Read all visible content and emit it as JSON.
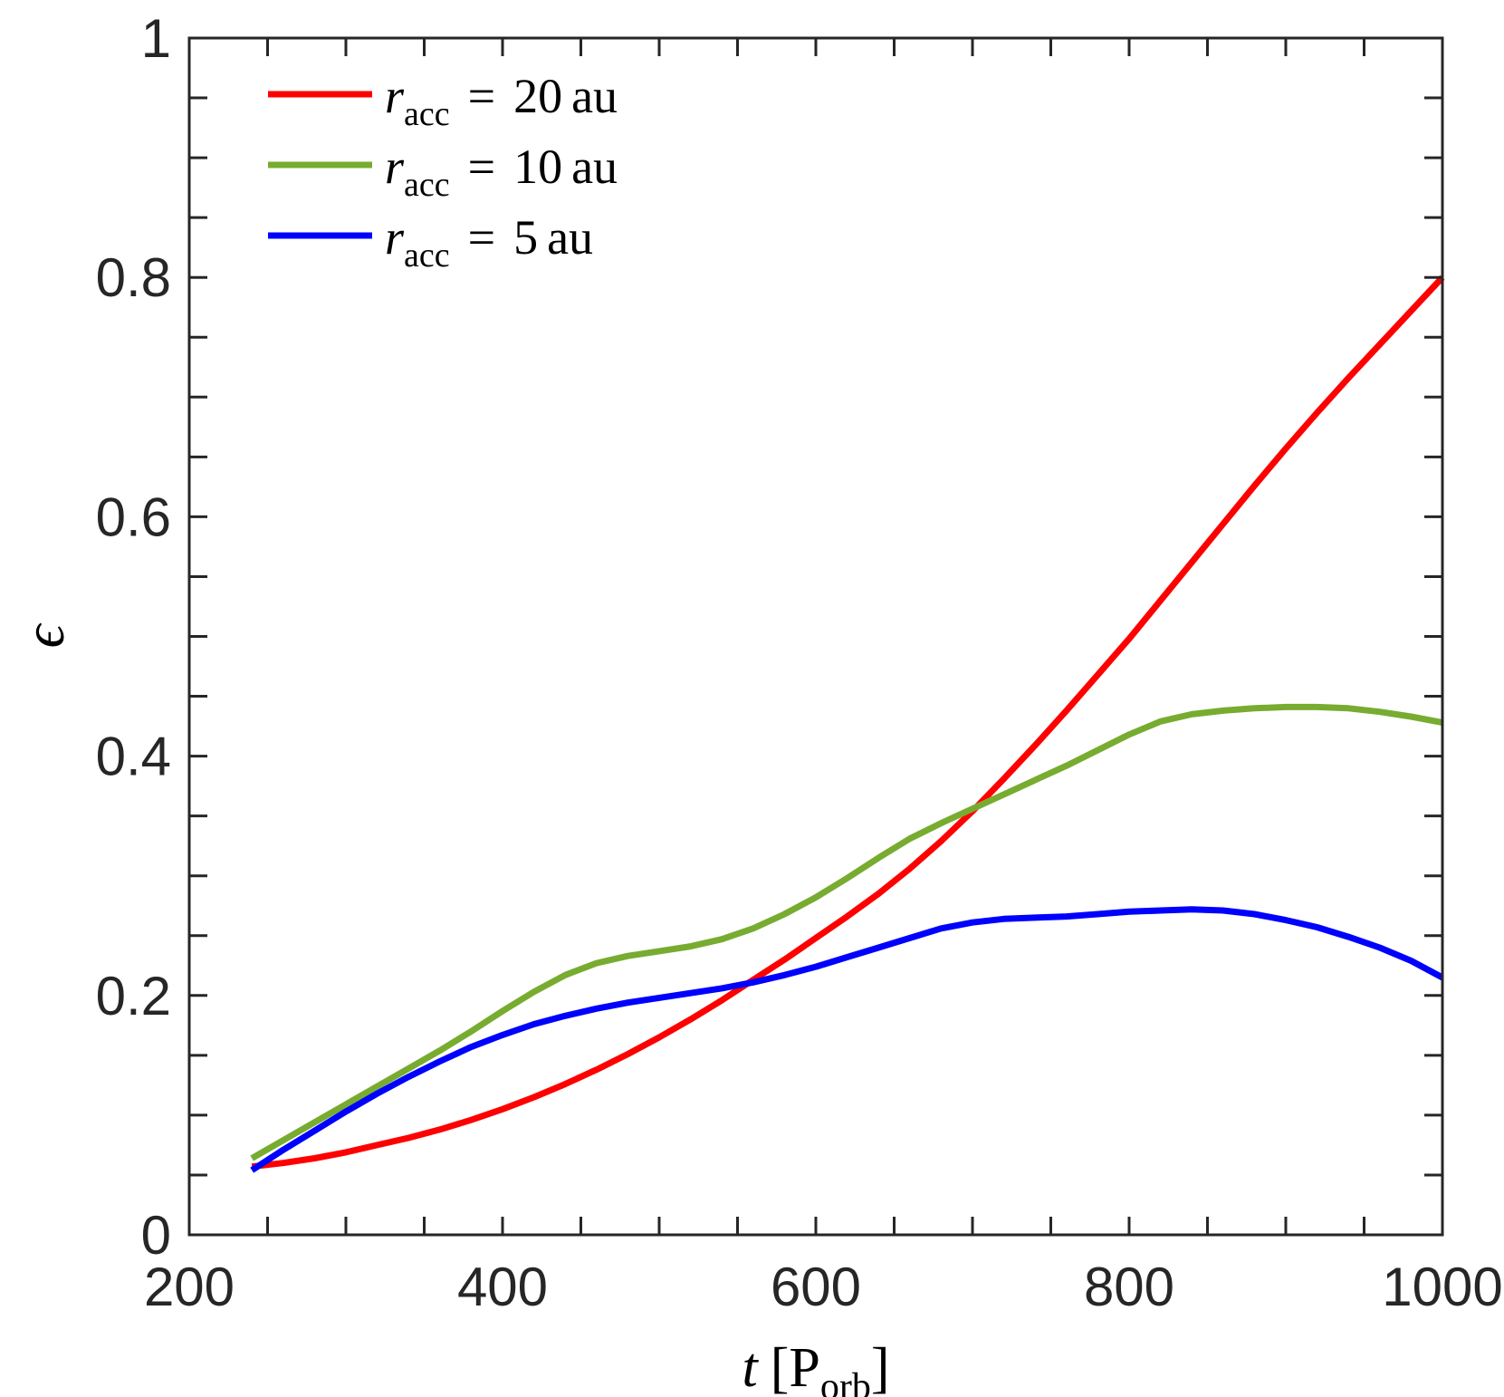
{
  "chart_data": {
    "type": "line",
    "title": "",
    "xlabel": {
      "var": "t",
      "unit_main": "P",
      "unit_sub": "orb"
    },
    "ylabel": "ϵ",
    "xlim": [
      200,
      1000
    ],
    "ylim": [
      0,
      1
    ],
    "x_ticks": [
      200,
      400,
      600,
      800,
      1000
    ],
    "x_tick_labels": [
      "200",
      "400",
      "600",
      "800",
      "1000"
    ],
    "x_minor_step": 50,
    "y_ticks": [
      0,
      0.2,
      0.4,
      0.6,
      0.8,
      1
    ],
    "y_tick_labels": [
      "0",
      "0.2",
      "0.4",
      "0.6",
      "0.8",
      "1"
    ],
    "y_minor_step": 0.05,
    "grid": false,
    "legend_position": "top-left",
    "series": [
      {
        "name": "r_acc = 20 au",
        "legend": {
          "var": "r",
          "sub": "acc",
          "eq": "=",
          "value": "20",
          "unit": "au"
        },
        "color": "#ff0000",
        "x": [
          240,
          260,
          280,
          300,
          320,
          340,
          360,
          380,
          400,
          420,
          440,
          460,
          480,
          500,
          520,
          540,
          560,
          580,
          600,
          620,
          640,
          660,
          680,
          700,
          720,
          740,
          760,
          780,
          800,
          820,
          840,
          860,
          880,
          900,
          920,
          940,
          960,
          980,
          1000
        ],
        "y": [
          0.057,
          0.06,
          0.064,
          0.069,
          0.075,
          0.081,
          0.088,
          0.096,
          0.105,
          0.115,
          0.126,
          0.138,
          0.151,
          0.165,
          0.18,
          0.196,
          0.213,
          0.23,
          0.248,
          0.266,
          0.285,
          0.306,
          0.329,
          0.354,
          0.381,
          0.409,
          0.438,
          0.468,
          0.498,
          0.53,
          0.562,
          0.594,
          0.626,
          0.657,
          0.687,
          0.716,
          0.744,
          0.772,
          0.8
        ]
      },
      {
        "name": "r_acc = 10 au",
        "legend": {
          "var": "r",
          "sub": "acc",
          "eq": "=",
          "value": "10",
          "unit": "au"
        },
        "color": "#77ac30",
        "x": [
          240,
          260,
          280,
          300,
          320,
          340,
          360,
          380,
          400,
          420,
          440,
          460,
          480,
          500,
          520,
          540,
          560,
          580,
          600,
          620,
          640,
          660,
          680,
          700,
          720,
          740,
          760,
          780,
          800,
          820,
          840,
          860,
          880,
          900,
          920,
          940,
          960,
          980,
          1000
        ],
        "y": [
          0.064,
          0.079,
          0.094,
          0.109,
          0.124,
          0.139,
          0.154,
          0.17,
          0.187,
          0.203,
          0.217,
          0.227,
          0.233,
          0.237,
          0.241,
          0.247,
          0.256,
          0.268,
          0.282,
          0.298,
          0.315,
          0.331,
          0.344,
          0.356,
          0.368,
          0.38,
          0.392,
          0.405,
          0.418,
          0.429,
          0.435,
          0.438,
          0.44,
          0.441,
          0.441,
          0.44,
          0.437,
          0.433,
          0.428
        ]
      },
      {
        "name": "r_acc = 5 au",
        "legend": {
          "var": "r",
          "sub": "acc",
          "eq": "=",
          "value": "5",
          "unit": "au"
        },
        "color": "#0000ff",
        "x": [
          240,
          260,
          280,
          300,
          320,
          340,
          360,
          380,
          400,
          420,
          440,
          460,
          480,
          500,
          520,
          540,
          560,
          580,
          600,
          620,
          640,
          660,
          680,
          700,
          720,
          740,
          760,
          780,
          800,
          820,
          840,
          860,
          880,
          900,
          920,
          940,
          960,
          980,
          1000
        ],
        "y": [
          0.054,
          0.071,
          0.087,
          0.103,
          0.118,
          0.132,
          0.145,
          0.157,
          0.167,
          0.176,
          0.183,
          0.189,
          0.194,
          0.198,
          0.202,
          0.206,
          0.211,
          0.217,
          0.224,
          0.232,
          0.24,
          0.248,
          0.256,
          0.261,
          0.264,
          0.265,
          0.266,
          0.268,
          0.27,
          0.271,
          0.272,
          0.271,
          0.268,
          0.263,
          0.257,
          0.249,
          0.24,
          0.229,
          0.215
        ]
      }
    ]
  }
}
